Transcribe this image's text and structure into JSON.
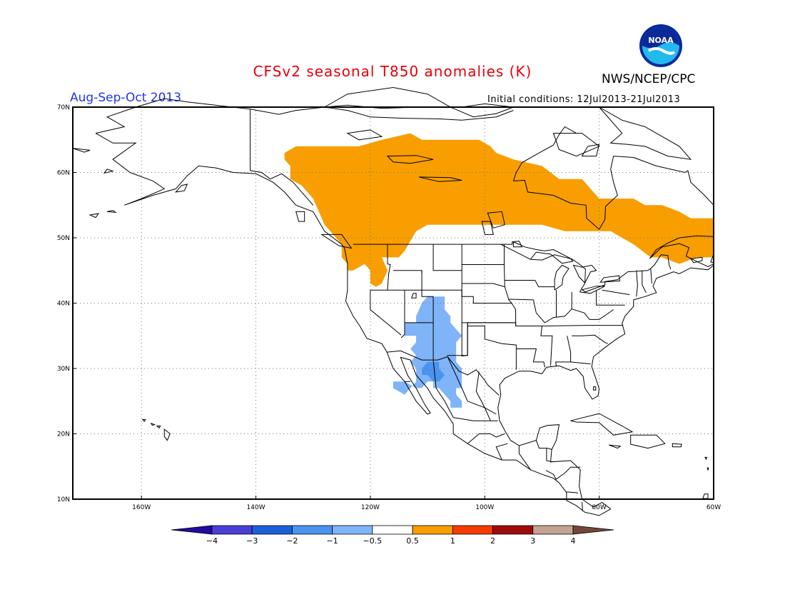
{
  "header": {
    "title": "CFSv2 seasonal T850 anomalies (K)",
    "title_color": "#e8000b",
    "organization": "NWS/NCEP/CPC",
    "season": "Aug-Sep-Oct 2013",
    "season_color": "#2233ee",
    "initial_conditions": "Initial conditions: 12Jul2013-21Jul2013",
    "logo": "noaa-logo",
    "logo_text": "NOAA"
  },
  "map": {
    "projection": "lat-lon",
    "lon_range": [
      -172,
      -60
    ],
    "lat_range": [
      10,
      70
    ],
    "lat_labels": [
      "70N",
      "60N",
      "50N",
      "40N",
      "30N",
      "20N",
      "10N"
    ],
    "lon_labels": [
      "160W",
      "140W",
      "120W",
      "100W",
      "80W",
      "60W"
    ],
    "grid": "dotted",
    "anomaly_regions": [
      {
        "name": "warm-anomaly-canada",
        "category": "0.5 to 1",
        "color": "#f89e00",
        "vertices": [
          [
            -133,
            64
          ],
          [
            -122,
            64
          ],
          [
            -118,
            65
          ],
          [
            -113,
            66
          ],
          [
            -111,
            65
          ],
          [
            -104,
            65
          ],
          [
            -101,
            65
          ],
          [
            -99,
            64
          ],
          [
            -98,
            63
          ],
          [
            -95,
            62
          ],
          [
            -90,
            61
          ],
          [
            -87,
            59
          ],
          [
            -83,
            59
          ],
          [
            -80,
            56
          ],
          [
            -77,
            56
          ],
          [
            -74,
            56
          ],
          [
            -72,
            55
          ],
          [
            -69,
            55
          ],
          [
            -66,
            54
          ],
          [
            -64,
            53
          ],
          [
            -60,
            53
          ],
          [
            -60,
            47
          ],
          [
            -63,
            47
          ],
          [
            -66,
            46
          ],
          [
            -69,
            47
          ],
          [
            -71,
            47
          ],
          [
            -74,
            49
          ],
          [
            -78,
            51
          ],
          [
            -82,
            51
          ],
          [
            -86,
            51
          ],
          [
            -90,
            52
          ],
          [
            -97,
            52
          ],
          [
            -104,
            52
          ],
          [
            -110,
            52
          ],
          [
            -112,
            51
          ],
          [
            -114,
            48
          ],
          [
            -115,
            47
          ],
          [
            -118,
            47
          ],
          [
            -117,
            45
          ],
          [
            -118,
            43
          ],
          [
            -119,
            42.5
          ],
          [
            -120,
            43
          ],
          [
            -120,
            45
          ],
          [
            -121,
            46
          ],
          [
            -123,
            45
          ],
          [
            -124,
            45
          ],
          [
            -124,
            46
          ],
          [
            -125,
            47
          ],
          [
            -125,
            49
          ],
          [
            -126,
            50
          ],
          [
            -127,
            51
          ],
          [
            -128,
            52
          ],
          [
            -129,
            54
          ],
          [
            -130,
            56
          ],
          [
            -132,
            58
          ],
          [
            -134,
            59
          ],
          [
            -134,
            61
          ],
          [
            -135,
            62
          ],
          [
            -135,
            63
          ],
          [
            -133,
            64
          ]
        ]
      },
      {
        "name": "cool-anomaly-southwest",
        "category": "-1 to -0.5",
        "color": "#80b4f8",
        "vertices": [
          [
            -110,
            41
          ],
          [
            -107,
            41
          ],
          [
            -107,
            39
          ],
          [
            -106,
            38
          ],
          [
            -106,
            37
          ],
          [
            -105,
            36
          ],
          [
            -104,
            35
          ],
          [
            -105,
            34
          ],
          [
            -105,
            33
          ],
          [
            -105,
            31
          ],
          [
            -104,
            30
          ],
          [
            -104,
            29
          ],
          [
            -104,
            28
          ],
          [
            -104,
            27
          ],
          [
            -105,
            27
          ],
          [
            -105,
            26
          ],
          [
            -104,
            25
          ],
          [
            -104,
            24
          ],
          [
            -106,
            24
          ],
          [
            -106,
            25
          ],
          [
            -107,
            26
          ],
          [
            -108,
            27
          ],
          [
            -109,
            27
          ],
          [
            -109,
            28
          ],
          [
            -110,
            28
          ],
          [
            -111,
            27
          ],
          [
            -112,
            27
          ],
          [
            -114,
            28
          ],
          [
            -115,
            28
          ],
          [
            -116,
            28
          ],
          [
            -116,
            27
          ],
          [
            -114,
            26
          ],
          [
            -113,
            27
          ],
          [
            -112,
            28
          ],
          [
            -112,
            30
          ],
          [
            -113,
            31
          ],
          [
            -112,
            32
          ],
          [
            -113,
            33
          ],
          [
            -112,
            34
          ],
          [
            -112,
            35
          ],
          [
            -113,
            35
          ],
          [
            -114,
            35
          ],
          [
            -114,
            37
          ],
          [
            -113,
            37
          ],
          [
            -112,
            37
          ],
          [
            -112,
            38
          ],
          [
            -111,
            40
          ],
          [
            -110,
            41
          ]
        ]
      },
      {
        "name": "cool-anomaly-core",
        "category": "-2 to -1",
        "color": "#4a94f0",
        "vertices": [
          [
            -110,
            31
          ],
          [
            -108,
            31
          ],
          [
            -108,
            30
          ],
          [
            -107,
            29
          ],
          [
            -108,
            28
          ],
          [
            -109,
            28
          ],
          [
            -110,
            29
          ],
          [
            -111,
            29
          ],
          [
            -111,
            30
          ],
          [
            -110,
            31
          ]
        ]
      }
    ],
    "borders": {
      "color": "#000000"
    }
  },
  "colorbar": {
    "bins": [
      {
        "color": "#240a9e"
      },
      {
        "color": "#4a3ed6"
      },
      {
        "color": "#1a60d8"
      },
      {
        "color": "#4a94f0"
      },
      {
        "color": "#80b4f8"
      },
      {
        "color": "#ffffff"
      },
      {
        "color": "#f89e00"
      },
      {
        "color": "#f43c00"
      },
      {
        "color": "#a00a0a"
      },
      {
        "color": "#c4a492"
      },
      {
        "color": "#74463a"
      }
    ],
    "labels": [
      "-4",
      "-3",
      "-2",
      "-1",
      "-0.5",
      "0.5",
      "1",
      "2",
      "3",
      "4"
    ]
  }
}
